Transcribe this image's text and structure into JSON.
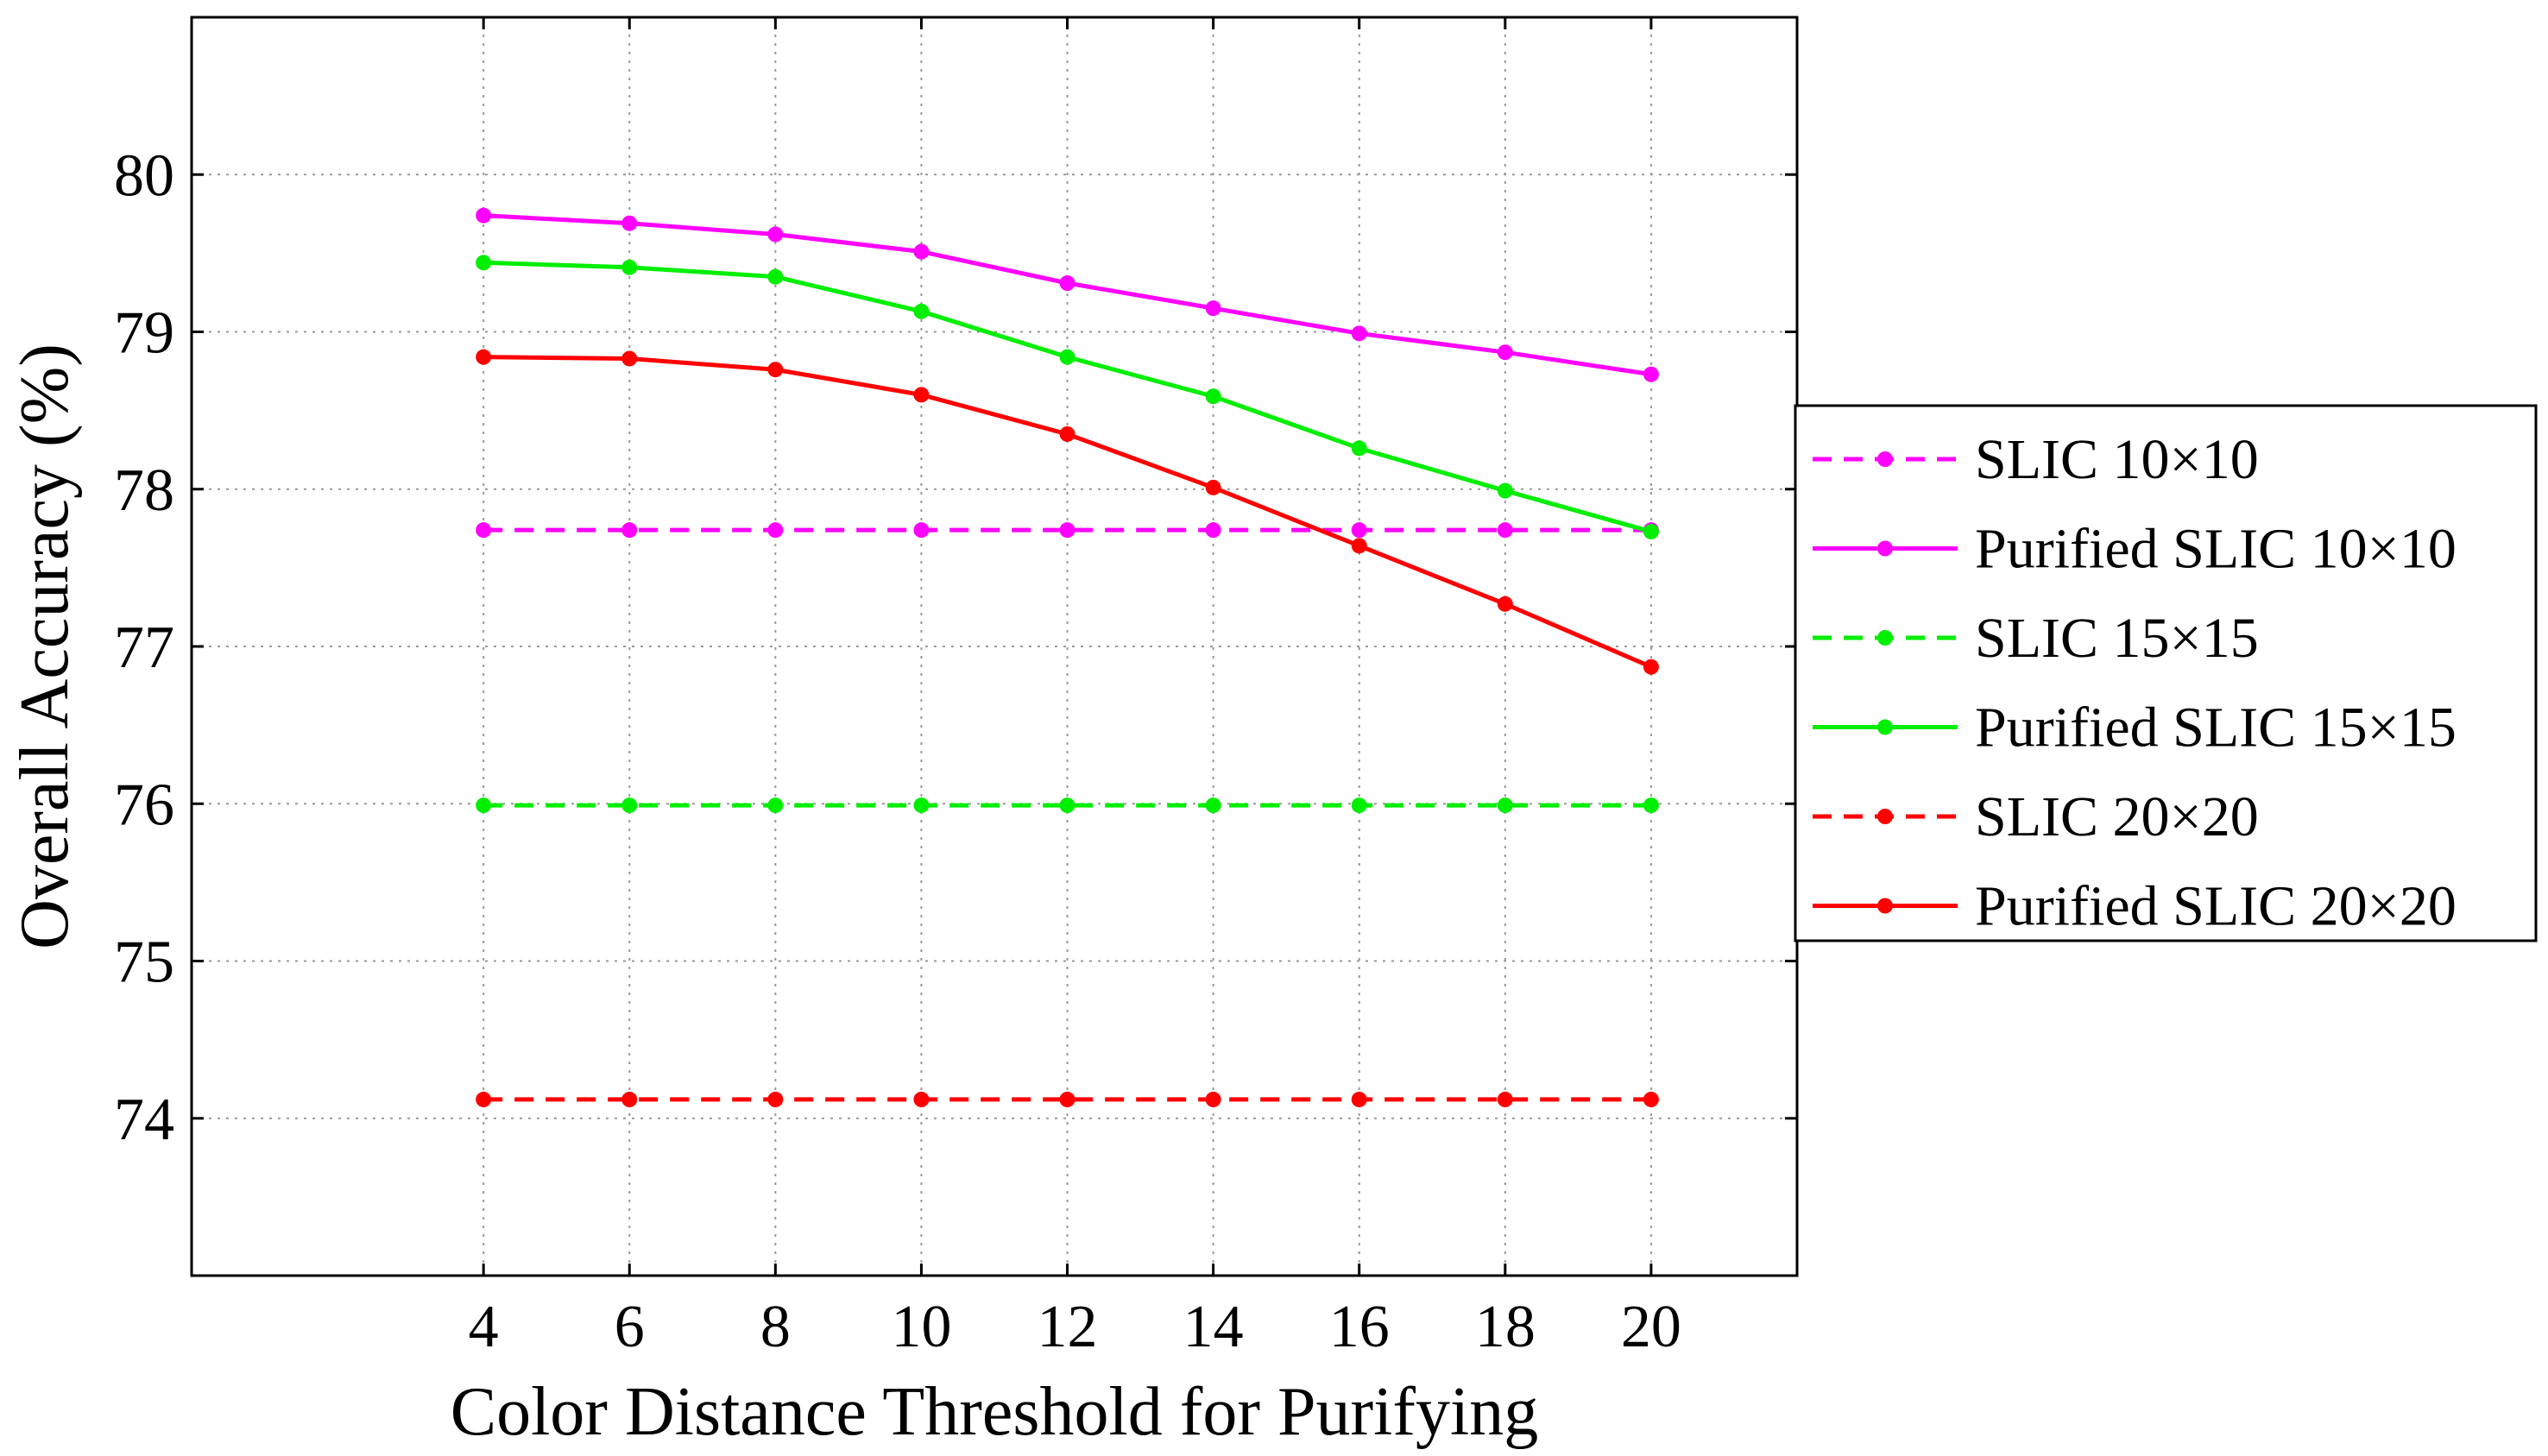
{
  "chart_data": {
    "type": "line",
    "title": "",
    "xlabel": "Color Distance Threshold for Purifying",
    "ylabel": "Overall Accuracy (%)",
    "x": [
      4,
      6,
      8,
      10,
      12,
      14,
      16,
      18,
      20
    ],
    "x_ticks": [
      "4",
      "6",
      "8",
      "10",
      "12",
      "14",
      "16",
      "18",
      "20"
    ],
    "y_ticks": [
      "74",
      "75",
      "76",
      "77",
      "78",
      "79",
      "80"
    ],
    "xlim": [
      0,
      22
    ],
    "ylim": [
      73,
      81
    ],
    "grid": true,
    "legend_position": "outside-right",
    "series": [
      {
        "name": "SLIC 10×10",
        "color": "#ff00ff",
        "dashed": true,
        "values": [
          77.74,
          77.74,
          77.74,
          77.74,
          77.74,
          77.74,
          77.74,
          77.74,
          77.74
        ]
      },
      {
        "name": "Purified SLIC 10×10",
        "color": "#ff00ff",
        "dashed": false,
        "values": [
          79.74,
          79.69,
          79.62,
          79.51,
          79.31,
          79.15,
          78.99,
          78.87,
          78.73
        ]
      },
      {
        "name": "SLIC 15×15",
        "color": "#00ee00",
        "dashed": true,
        "values": [
          75.99,
          75.99,
          75.99,
          75.99,
          75.99,
          75.99,
          75.99,
          75.99,
          75.99
        ]
      },
      {
        "name": "Purified SLIC 15×15",
        "color": "#00ee00",
        "dashed": false,
        "values": [
          79.44,
          79.41,
          79.35,
          79.13,
          78.84,
          78.59,
          78.26,
          77.99,
          77.73
        ]
      },
      {
        "name": "SLIC 20×20",
        "color": "#ff0000",
        "dashed": true,
        "values": [
          74.12,
          74.12,
          74.12,
          74.12,
          74.12,
          74.12,
          74.12,
          74.12,
          74.12
        ]
      },
      {
        "name": "Purified SLIC 20×20",
        "color": "#ff0000",
        "dashed": false,
        "values": [
          78.84,
          78.83,
          78.76,
          78.6,
          78.35,
          78.01,
          77.64,
          77.27,
          76.87
        ]
      }
    ]
  }
}
